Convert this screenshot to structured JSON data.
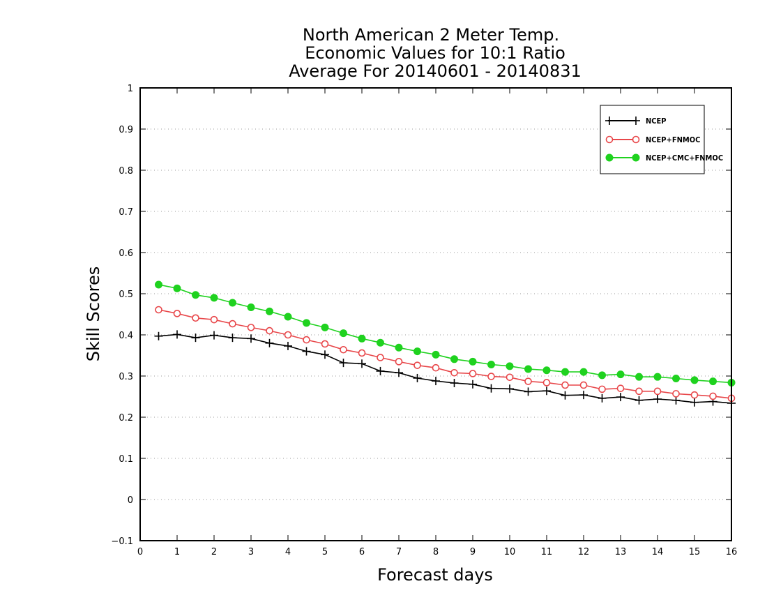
{
  "chart_data": {
    "type": "line",
    "title": [
      "North American 2 Meter Temp.",
      "Economic Values for 10:1 Ratio",
      "Average For 20140601 - 20140831"
    ],
    "xlabel": "Forecast days",
    "ylabel": "Skill Scores",
    "xlim": [
      0,
      16
    ],
    "ylim": [
      -0.1,
      1
    ],
    "xticks": [
      0,
      1,
      2,
      3,
      4,
      5,
      6,
      7,
      8,
      9,
      10,
      11,
      12,
      13,
      14,
      15,
      16
    ],
    "yticks": [
      -0.1,
      0,
      0.1,
      0.2,
      0.3,
      0.4,
      0.5,
      0.6,
      0.7,
      0.8,
      0.9,
      1
    ],
    "ytick_labels": [
      "−0.1",
      "0",
      "0.1",
      "0.2",
      "0.3",
      "0.4",
      "0.5",
      "0.6",
      "0.7",
      "0.8",
      "0.9",
      "1"
    ],
    "grid": "horizontal-dotted",
    "legend_position": "top-right",
    "x": [
      0.5,
      1,
      1.5,
      2,
      2.5,
      3,
      3.5,
      4,
      4.5,
      5,
      5.5,
      6,
      6.5,
      7,
      7.5,
      8,
      8.5,
      9,
      9.5,
      10,
      10.5,
      11,
      11.5,
      12,
      12.5,
      13,
      13.5,
      14,
      14.5,
      15,
      15.5,
      16
    ],
    "series": [
      {
        "name": "NCEP",
        "color": "#000000",
        "marker": "plus",
        "values": [
          0.397,
          0.401,
          0.393,
          0.399,
          0.393,
          0.391,
          0.38,
          0.373,
          0.36,
          0.352,
          0.332,
          0.33,
          0.312,
          0.308,
          0.295,
          0.288,
          0.283,
          0.28,
          0.27,
          0.269,
          0.262,
          0.264,
          0.253,
          0.254,
          0.246,
          0.249,
          0.241,
          0.244,
          0.241,
          0.236,
          0.238,
          0.234
        ]
      },
      {
        "name": "NCEP+FNMOC",
        "color": "#e8474a",
        "marker": "open-circle",
        "values": [
          0.461,
          0.452,
          0.441,
          0.437,
          0.427,
          0.418,
          0.41,
          0.4,
          0.388,
          0.378,
          0.364,
          0.356,
          0.345,
          0.335,
          0.326,
          0.32,
          0.308,
          0.306,
          0.299,
          0.297,
          0.287,
          0.284,
          0.278,
          0.278,
          0.268,
          0.27,
          0.263,
          0.263,
          0.257,
          0.254,
          0.251,
          0.246
        ]
      },
      {
        "name": "NCEP+CMC+FNMOC",
        "color": "#1fd21f",
        "marker": "filled-circle",
        "values": [
          0.522,
          0.513,
          0.497,
          0.49,
          0.478,
          0.467,
          0.457,
          0.444,
          0.429,
          0.418,
          0.404,
          0.391,
          0.381,
          0.369,
          0.36,
          0.352,
          0.341,
          0.335,
          0.328,
          0.324,
          0.317,
          0.314,
          0.31,
          0.31,
          0.302,
          0.304,
          0.298,
          0.298,
          0.294,
          0.29,
          0.287,
          0.284
        ]
      }
    ]
  }
}
